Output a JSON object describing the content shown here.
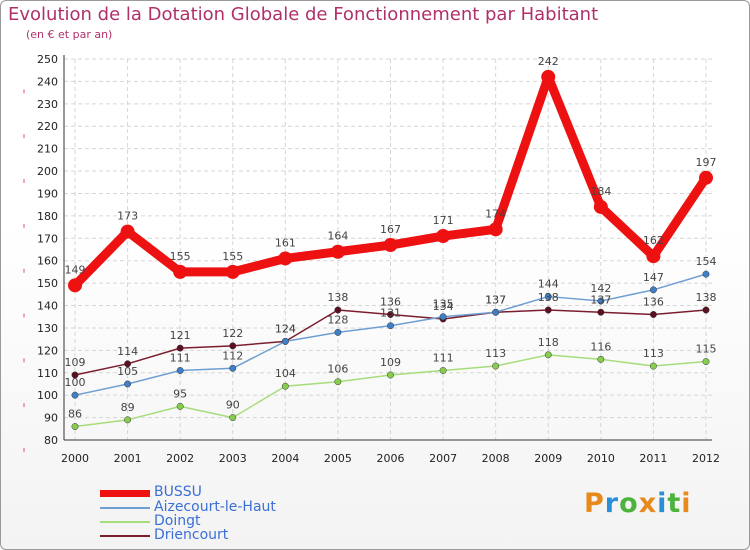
{
  "header": {
    "title": "Evolution de la Dotation Globale de Fonctionnement par Habitant",
    "subtitle": "(en € et par an)"
  },
  "logo": {
    "text": "Proxiti",
    "colors": [
      "#e8891c",
      "#2a8fd6",
      "#4db33d",
      "#e8891c",
      "#2a8fd6",
      "#4db33d",
      "#e8891c"
    ]
  },
  "chart_data": {
    "type": "line",
    "title": "Evolution de la Dotation Globale de Fonctionnement par Habitant",
    "subtitle": "(en € et par an)",
    "xlabel": "",
    "ylabel": "",
    "ylim": [
      80,
      250
    ],
    "yticks": [
      80,
      90,
      100,
      110,
      120,
      130,
      140,
      150,
      160,
      170,
      180,
      190,
      200,
      210,
      220,
      230,
      240,
      250
    ],
    "grid": true,
    "categories": [
      "2000",
      "2001",
      "2002",
      "2003",
      "2004",
      "2005",
      "2006",
      "2007",
      "2008",
      "2009",
      "2010",
      "2011",
      "2012"
    ],
    "series": [
      {
        "name": "Driencourt",
        "color": "#7a1e2e",
        "marker_color": "#5a1020",
        "values": [
          109,
          114,
          121,
          122,
          124,
          138,
          136,
          134,
          137,
          138,
          137,
          136,
          138
        ]
      },
      {
        "name": "Doingt",
        "color": "#a6dd7c",
        "marker_color": "#86cc4e",
        "values": [
          86,
          89,
          95,
          90,
          104,
          106,
          109,
          111,
          113,
          118,
          116,
          113,
          115
        ]
      },
      {
        "name": "Aizecourt-le-Haut",
        "color": "#6f9fd2",
        "marker_color": "#3f7fc8",
        "values": [
          100,
          105,
          111,
          112,
          124,
          128,
          131,
          135,
          137,
          144,
          142,
          147,
          154
        ]
      },
      {
        "name": "BUSSU",
        "color": "#ee1111",
        "marker_color": "#ee1111",
        "values": [
          149,
          173,
          155,
          155,
          161,
          164,
          167,
          171,
          174,
          242,
          184,
          162,
          197
        ]
      }
    ],
    "legend_order": [
      "BUSSU",
      "Aizecourt-le-Haut",
      "Doingt",
      "Driencourt"
    ],
    "legend_position": "bottom-left"
  }
}
